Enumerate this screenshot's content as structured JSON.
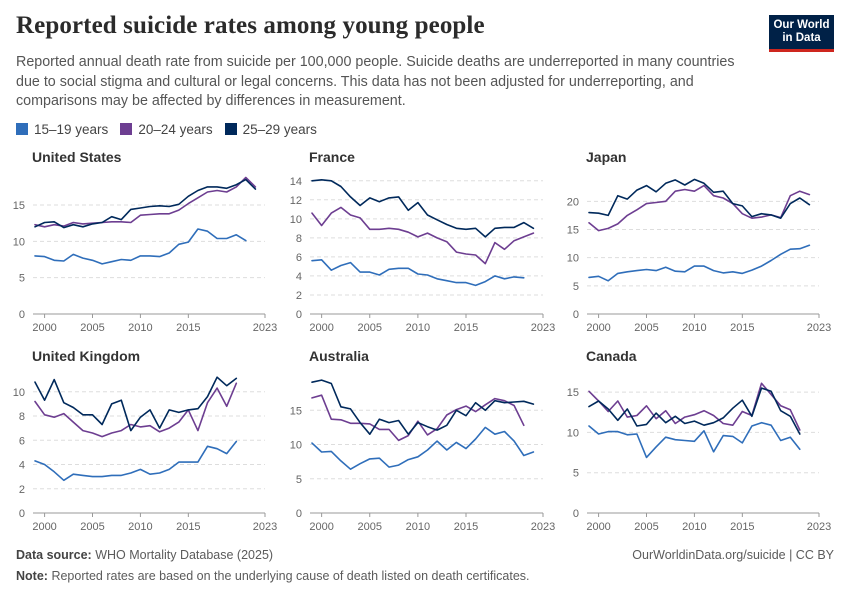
{
  "title": "Reported suicide rates among young people",
  "subtitle": "Reported annual death rate from suicide per 100,000 people. Suicide deaths are underreported in many countries due to social stigma and cultural or legal concerns. This data has not been adjusted for underreporting, and comparisons may be affected by differences in measurement.",
  "logo": {
    "line1": "Our World",
    "line2": "in Data"
  },
  "legend": [
    {
      "label": "15–19 years",
      "color": "#2f6eba"
    },
    {
      "label": "20–24 years",
      "color": "#6d3e91"
    },
    {
      "label": "25–29 years",
      "color": "#00295b"
    }
  ],
  "footer": {
    "source_label": "Data source:",
    "source": "WHO Mortality Database (2025)",
    "right": "OurWorldinData.org/suicide | CC BY",
    "note_label": "Note:",
    "note": "Reported rates are based on the underlying cause of death listed on death certificates."
  },
  "chart_data": [
    {
      "type": "line",
      "title": "United States",
      "x": [
        1999,
        2000,
        2001,
        2002,
        2003,
        2004,
        2005,
        2006,
        2007,
        2008,
        2009,
        2010,
        2011,
        2012,
        2013,
        2014,
        2015,
        2016,
        2017,
        2018,
        2019,
        2020,
        2021,
        2022,
        2023
      ],
      "xticks": [
        2000,
        2005,
        2010,
        2015,
        2023
      ],
      "yticks": [
        0,
        5,
        10,
        15
      ],
      "ylim": [
        0,
        19
      ],
      "series": [
        {
          "name": "15–19 years",
          "values": [
            8.0,
            7.9,
            7.4,
            7.3,
            8.2,
            7.7,
            7.4,
            6.9,
            7.2,
            7.5,
            7.4,
            8.0,
            8.0,
            7.9,
            8.4,
            9.6,
            9.9,
            11.7,
            11.4,
            10.4,
            10.4,
            10.9,
            10.1,
            null,
            null
          ]
        },
        {
          "name": "20–24 years",
          "values": [
            12.3,
            12.0,
            12.3,
            12.1,
            12.6,
            12.4,
            12.5,
            12.6,
            12.7,
            12.7,
            12.6,
            13.6,
            13.7,
            13.8,
            13.8,
            14.3,
            15.2,
            16.0,
            16.8,
            17.0,
            16.8,
            17.5,
            18.8,
            17.5,
            null
          ]
        },
        {
          "name": "25–29 years",
          "values": [
            12.0,
            12.6,
            12.7,
            11.9,
            12.3,
            12.0,
            12.4,
            12.6,
            13.4,
            13.0,
            14.4,
            14.6,
            14.8,
            14.9,
            14.8,
            15.1,
            16.2,
            17.0,
            17.5,
            17.5,
            17.3,
            17.8,
            18.5,
            17.2,
            null
          ]
        }
      ]
    },
    {
      "type": "line",
      "title": "France",
      "x": [
        1999,
        2000,
        2001,
        2002,
        2003,
        2004,
        2005,
        2006,
        2007,
        2008,
        2009,
        2010,
        2011,
        2012,
        2013,
        2014,
        2015,
        2016,
        2017,
        2018,
        2019,
        2020,
        2021,
        2022,
        2023
      ],
      "xticks": [
        2000,
        2005,
        2010,
        2015,
        2023
      ],
      "yticks": [
        0,
        2,
        4,
        6,
        8,
        10,
        12,
        14
      ],
      "ylim": [
        0,
        14.5
      ],
      "series": [
        {
          "name": "15–19 years",
          "values": [
            5.6,
            5.7,
            4.6,
            5.1,
            5.4,
            4.4,
            4.4,
            4.1,
            4.7,
            4.8,
            4.8,
            4.2,
            4.1,
            3.7,
            3.5,
            3.3,
            3.3,
            3.0,
            3.4,
            4.0,
            3.7,
            3.9,
            3.8,
            null,
            null
          ]
        },
        {
          "name": "20–24 years",
          "values": [
            10.6,
            9.3,
            10.6,
            11.2,
            10.4,
            10.1,
            8.9,
            8.9,
            9.0,
            8.9,
            8.6,
            8.1,
            8.5,
            8.0,
            7.6,
            6.5,
            6.3,
            6.2,
            5.3,
            7.5,
            6.8,
            7.7,
            8.1,
            8.5,
            null
          ]
        },
        {
          "name": "25–29 years",
          "values": [
            14.0,
            14.1,
            14.0,
            13.4,
            12.3,
            11.4,
            12.2,
            11.8,
            12.2,
            12.3,
            10.9,
            11.7,
            10.4,
            9.9,
            9.4,
            9.0,
            8.9,
            9.0,
            8.1,
            9.0,
            9.1,
            9.1,
            9.6,
            9.0,
            null
          ]
        }
      ]
    },
    {
      "type": "line",
      "title": "Japan",
      "x": [
        1999,
        2000,
        2001,
        2002,
        2003,
        2004,
        2005,
        2006,
        2007,
        2008,
        2009,
        2010,
        2011,
        2012,
        2013,
        2014,
        2015,
        2016,
        2017,
        2018,
        2019,
        2020,
        2021,
        2022,
        2023
      ],
      "xticks": [
        2000,
        2005,
        2010,
        2015,
        2023
      ],
      "yticks": [
        0,
        5,
        10,
        15,
        20
      ],
      "ylim": [
        0,
        24.5
      ],
      "series": [
        {
          "name": "15–19 years",
          "values": [
            6.5,
            6.7,
            5.9,
            7.2,
            7.5,
            7.7,
            7.9,
            7.7,
            8.3,
            7.6,
            7.5,
            8.5,
            8.5,
            7.7,
            7.3,
            7.5,
            7.2,
            7.8,
            8.5,
            9.5,
            10.6,
            11.5,
            11.6,
            12.2,
            null
          ]
        },
        {
          "name": "20–24 years",
          "values": [
            16.2,
            14.8,
            15.2,
            16.0,
            17.5,
            18.5,
            19.6,
            19.8,
            20.0,
            21.8,
            22.1,
            21.8,
            22.8,
            21.0,
            20.6,
            19.6,
            17.8,
            17.0,
            17.2,
            17.6,
            17.1,
            21.0,
            21.8,
            21.2,
            null
          ]
        },
        {
          "name": "25–29 years",
          "values": [
            18.0,
            17.9,
            17.5,
            21.0,
            20.4,
            22.0,
            22.8,
            21.7,
            23.2,
            23.8,
            22.9,
            23.9,
            23.2,
            21.6,
            21.8,
            19.6,
            19.2,
            17.3,
            17.8,
            17.6,
            17.0,
            19.6,
            20.6,
            19.4,
            null
          ]
        }
      ]
    },
    {
      "type": "line",
      "title": "United Kingdom",
      "x": [
        1999,
        2000,
        2001,
        2002,
        2003,
        2004,
        2005,
        2006,
        2007,
        2008,
        2009,
        2010,
        2011,
        2012,
        2013,
        2014,
        2015,
        2016,
        2017,
        2018,
        2019,
        2020,
        2021,
        2022,
        2023
      ],
      "xticks": [
        2000,
        2005,
        2010,
        2015,
        2023
      ],
      "yticks": [
        0,
        2,
        4,
        6,
        8,
        10
      ],
      "ylim": [
        0,
        11.3
      ],
      "series": [
        {
          "name": "15–19 years",
          "values": [
            4.3,
            4.0,
            3.4,
            2.7,
            3.2,
            3.1,
            3.0,
            3.0,
            3.1,
            3.1,
            3.3,
            3.6,
            3.2,
            3.3,
            3.6,
            4.2,
            4.2,
            4.2,
            5.5,
            5.3,
            4.9,
            5.9,
            null,
            null,
            null
          ]
        },
        {
          "name": "20–24 years",
          "values": [
            9.2,
            8.1,
            7.9,
            8.2,
            7.5,
            6.8,
            6.6,
            6.3,
            6.6,
            6.8,
            7.3,
            7.1,
            7.2,
            6.7,
            7.0,
            7.5,
            8.5,
            6.8,
            9.1,
            10.3,
            8.8,
            10.7,
            null,
            null,
            null
          ]
        },
        {
          "name": "25–29 years",
          "values": [
            10.8,
            9.3,
            11.0,
            9.1,
            8.7,
            8.1,
            8.1,
            7.3,
            9.0,
            9.3,
            6.8,
            7.9,
            8.5,
            7.0,
            8.5,
            8.3,
            8.5,
            8.6,
            9.6,
            11.2,
            10.5,
            11.1,
            null,
            null,
            null
          ]
        }
      ]
    },
    {
      "type": "line",
      "title": "Australia",
      "x": [
        1999,
        2000,
        2001,
        2002,
        2003,
        2004,
        2005,
        2006,
        2007,
        2008,
        2009,
        2010,
        2011,
        2012,
        2013,
        2014,
        2015,
        2016,
        2017,
        2018,
        2019,
        2020,
        2021,
        2022,
        2023
      ],
      "xticks": [
        2000,
        2005,
        2010,
        2015,
        2023
      ],
      "yticks": [
        0,
        5,
        10,
        15
      ],
      "ylim": [
        0,
        20
      ],
      "series": [
        {
          "name": "15–19 years",
          "values": [
            10.2,
            8.9,
            9.0,
            7.6,
            6.4,
            7.2,
            7.9,
            8.0,
            6.7,
            7.0,
            7.8,
            8.2,
            9.2,
            10.5,
            9.2,
            10.3,
            9.4,
            10.8,
            12.5,
            11.5,
            11.9,
            10.5,
            8.4,
            8.9,
            null
          ]
        },
        {
          "name": "20–24 years",
          "values": [
            16.8,
            17.2,
            13.7,
            13.6,
            13.1,
            13.1,
            13.0,
            12.2,
            12.2,
            10.6,
            11.3,
            13.4,
            11.4,
            12.3,
            14.3,
            15.1,
            15.6,
            14.8,
            15.8,
            16.7,
            16.4,
            15.7,
            12.8,
            null,
            null
          ]
        },
        {
          "name": "25–29 years",
          "values": [
            19.1,
            19.4,
            18.9,
            15.5,
            15.2,
            13.2,
            11.5,
            13.7,
            13.2,
            13.5,
            11.5,
            13.2,
            12.6,
            12.1,
            12.8,
            15.0,
            14.2,
            16.1,
            15.0,
            16.4,
            16.1,
            16.2,
            16.3,
            15.9,
            null
          ]
        }
      ]
    },
    {
      "type": "line",
      "title": "Canada",
      "x": [
        1999,
        2000,
        2001,
        2002,
        2003,
        2004,
        2005,
        2006,
        2007,
        2008,
        2009,
        2010,
        2011,
        2012,
        2013,
        2014,
        2015,
        2016,
        2017,
        2018,
        2019,
        2020,
        2021,
        2022,
        2023
      ],
      "xticks": [
        2000,
        2005,
        2010,
        2015,
        2023
      ],
      "yticks": [
        0,
        5,
        10,
        15
      ],
      "ylim": [
        0,
        17
      ],
      "series": [
        {
          "name": "15–19 years",
          "values": [
            10.8,
            9.8,
            10.1,
            10.1,
            9.7,
            9.8,
            6.9,
            8.2,
            9.4,
            9.1,
            9.0,
            8.9,
            10.2,
            7.6,
            9.6,
            9.5,
            8.7,
            10.8,
            11.2,
            10.9,
            9.0,
            9.4,
            7.9,
            null,
            null
          ]
        },
        {
          "name": "20–24 years",
          "values": [
            15.1,
            13.9,
            12.6,
            13.9,
            11.9,
            12.1,
            13.3,
            11.7,
            12.7,
            11.1,
            11.9,
            12.2,
            12.7,
            12.1,
            11.1,
            10.9,
            12.6,
            12.1,
            16.1,
            14.7,
            13.3,
            12.8,
            10.3,
            null,
            null
          ]
        },
        {
          "name": "25–29 years",
          "values": [
            13.2,
            13.9,
            12.9,
            11.5,
            12.9,
            10.8,
            11.0,
            12.4,
            11.2,
            12.0,
            11.1,
            11.4,
            10.9,
            11.2,
            11.8,
            13.0,
            14.0,
            12.0,
            15.5,
            15.1,
            12.7,
            12.0,
            9.8,
            null,
            null
          ]
        }
      ]
    }
  ]
}
